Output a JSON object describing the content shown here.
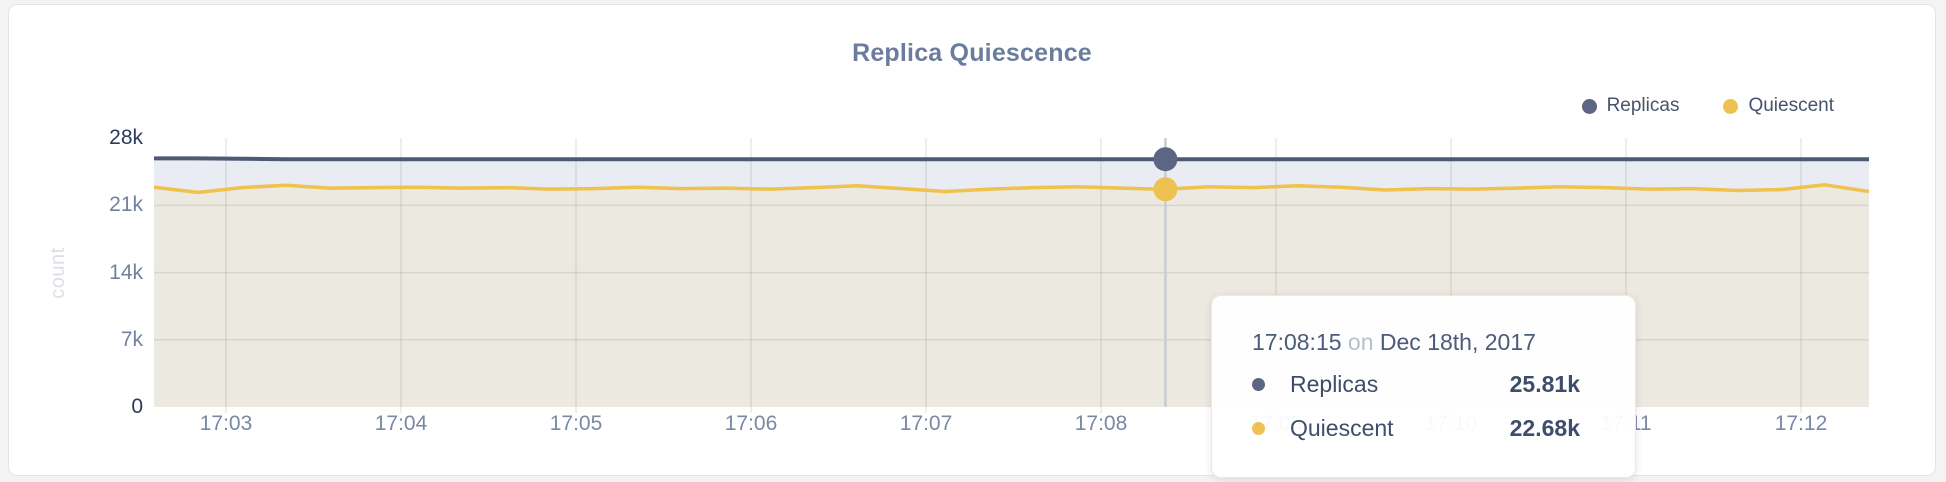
{
  "card": {
    "title": "Replica Quiescence"
  },
  "legend": [
    {
      "label": "Replicas",
      "color": "#5c6684"
    },
    {
      "label": "Quiescent",
      "color": "#edc252"
    }
  ],
  "y_axis": {
    "unit_label": "count",
    "ticks": [
      {
        "label": "28k",
        "value": 28,
        "emphasis": true,
        "grid": false
      },
      {
        "label": "21k",
        "value": 21,
        "emphasis": false,
        "grid": true
      },
      {
        "label": "14k",
        "value": 14,
        "emphasis": false,
        "grid": true
      },
      {
        "label": "7k",
        "value": 7,
        "emphasis": false,
        "grid": true
      },
      {
        "label": "0",
        "value": 0,
        "emphasis": true,
        "grid": false
      }
    ]
  },
  "x_axis": {
    "ticks": [
      "17:03",
      "17:04",
      "17:05",
      "17:06",
      "17:07",
      "17:08",
      "17:09",
      "17:10",
      "17:11",
      "17:12"
    ]
  },
  "tooltip": {
    "time": "17:08:15",
    "connector": "on",
    "date": "Dec 18th, 2017",
    "rows": [
      {
        "label": "Replicas",
        "value": "25.81k",
        "color": "#5c6684"
      },
      {
        "label": "Quiescent",
        "value": "22.68k",
        "color": "#edc252"
      }
    ]
  },
  "chart_data": {
    "type": "area",
    "title": "Replica Quiescence",
    "xlabel": "",
    "ylabel": "count",
    "unit": "thousands",
    "ylim": [
      0,
      28
    ],
    "x_ticks": [
      "17:03",
      "17:04",
      "17:05",
      "17:06",
      "17:07",
      "17:08",
      "17:09",
      "17:10",
      "17:11",
      "17:12"
    ],
    "x_range": [
      "17:02:35",
      "17:12:23"
    ],
    "sample_interval_seconds": 15,
    "grid": true,
    "legend_position": "top-right",
    "series": [
      {
        "name": "Replicas",
        "color": "#4d5975",
        "fill": "#e9ecf2",
        "width": 4,
        "values": [
          25.9,
          25.9,
          25.85,
          25.81,
          25.81,
          25.81,
          25.81,
          25.81,
          25.81,
          25.81,
          25.81,
          25.81,
          25.81,
          25.81,
          25.81,
          25.81,
          25.81,
          25.81,
          25.81,
          25.81,
          25.81,
          25.81,
          25.81,
          25.81,
          25.81,
          25.81,
          25.81,
          25.81,
          25.81,
          25.81,
          25.81,
          25.81,
          25.81,
          25.81,
          25.81,
          25.81,
          25.81,
          25.81,
          25.81,
          25.81
        ]
      },
      {
        "name": "Quiescent",
        "color": "#f0c14d",
        "fill": "#ece9e1",
        "width": 3.5,
        "values": [
          22.9,
          22.35,
          22.85,
          23.1,
          22.8,
          22.85,
          22.9,
          22.8,
          22.85,
          22.7,
          22.75,
          22.9,
          22.75,
          22.8,
          22.7,
          22.85,
          23.05,
          22.75,
          22.45,
          22.7,
          22.85,
          22.95,
          22.8,
          22.68,
          22.95,
          22.85,
          23.05,
          22.9,
          22.6,
          22.75,
          22.7,
          22.8,
          22.95,
          22.85,
          22.7,
          22.75,
          22.55,
          22.65,
          23.15,
          22.45
        ]
      }
    ],
    "hover": {
      "index": 23,
      "time": "17:08:15",
      "date": "Dec 18th, 2017",
      "replicas": 25.81,
      "quiescent": 22.68
    }
  }
}
